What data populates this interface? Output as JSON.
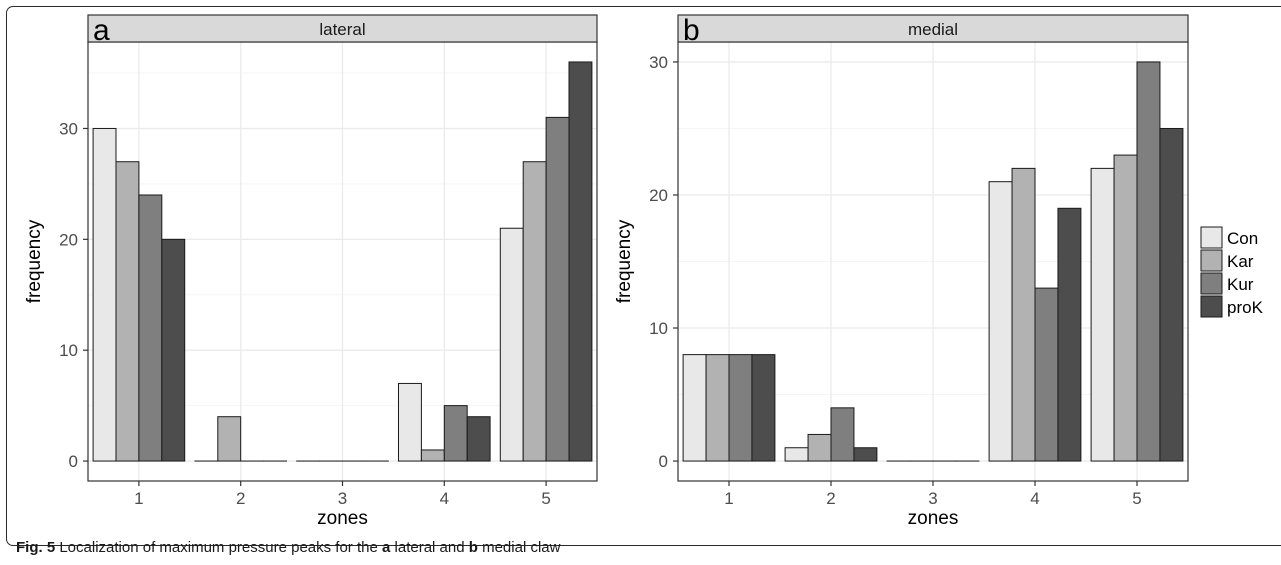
{
  "caption": {
    "label": "Fig. 5",
    "pre": "Localization of maximum pressure peaks for the",
    "a": "a",
    "mid1": "lateral and",
    "b": "b",
    "mid2": "medial claw"
  },
  "colors": {
    "Con": "#e8e8e8",
    "Kar": "#b2b2b2",
    "Kur": "#7f7f7f",
    "proK": "#4d4d4d",
    "strip": "#d9d9d9",
    "grid_major": "#ebebeb",
    "grid_minor": "#f5f5f5",
    "panel_border": "#333333"
  },
  "legend": {
    "position": "right",
    "entries": [
      "Con",
      "Kar",
      "Kur",
      "proK"
    ]
  },
  "chart_data": [
    {
      "type": "bar",
      "tag": "a",
      "title": "lateral",
      "xlabel": "zones",
      "ylabel": "frequency",
      "categories": [
        "1",
        "2",
        "3",
        "4",
        "5"
      ],
      "ylim": [
        -1.8,
        37.8
      ],
      "yticks": [
        0,
        10,
        20,
        30
      ],
      "grid": true,
      "series": [
        {
          "name": "Con",
          "values": [
            30,
            0,
            0,
            7,
            21
          ]
        },
        {
          "name": "Kar",
          "values": [
            27,
            4,
            0,
            1,
            27
          ]
        },
        {
          "name": "Kur",
          "values": [
            24,
            0,
            0,
            5,
            31
          ]
        },
        {
          "name": "proK",
          "values": [
            20,
            0,
            0,
            4,
            36
          ]
        }
      ]
    },
    {
      "type": "bar",
      "tag": "b",
      "title": "medial",
      "xlabel": "zones",
      "ylabel": "frequency",
      "categories": [
        "1",
        "2",
        "3",
        "4",
        "5"
      ],
      "ylim": [
        -1.5,
        31.5
      ],
      "yticks": [
        0,
        10,
        20,
        30
      ],
      "grid": true,
      "series": [
        {
          "name": "Con",
          "values": [
            8,
            1,
            0,
            21,
            22
          ]
        },
        {
          "name": "Kar",
          "values": [
            8,
            2,
            0,
            22,
            23
          ]
        },
        {
          "name": "Kur",
          "values": [
            8,
            4,
            0,
            13,
            30
          ]
        },
        {
          "name": "proK",
          "values": [
            8,
            1,
            0,
            19,
            25
          ]
        }
      ]
    }
  ]
}
